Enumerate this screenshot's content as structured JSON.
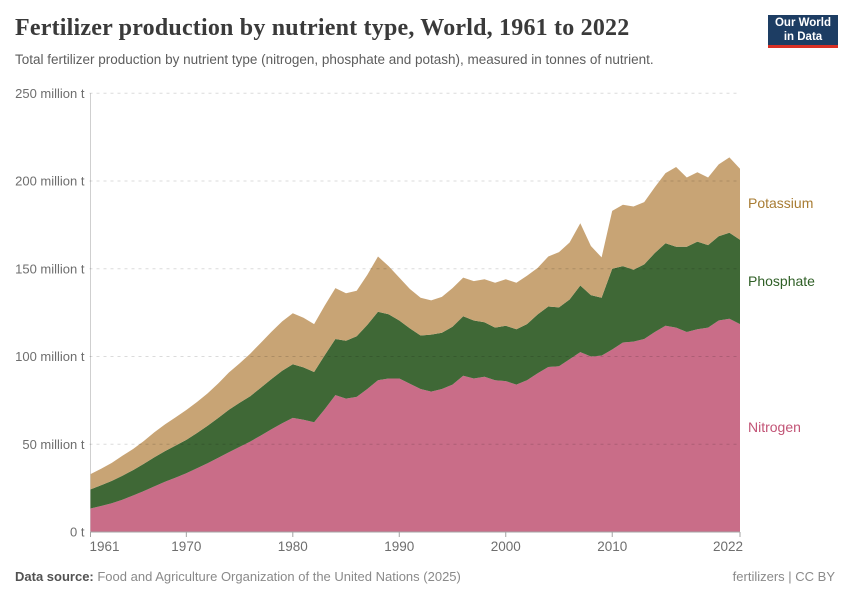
{
  "header": {
    "title": "Fertilizer production by nutrient type, World, 1961 to 2022",
    "subtitle": "Total fertilizer production by nutrient type (nitrogen, phosphate and potash), measured in tonnes of nutrient.",
    "logo": {
      "line1": "Our World",
      "line2": "in Data",
      "bg_color": "#1d3d63",
      "accent_color": "#d93025"
    }
  },
  "footer": {
    "datasource_label": "Data source:",
    "datasource_text": " Food and Agriculture Organization of the United Nations (2025)",
    "license": "fertilizers | CC BY"
  },
  "chart_data": {
    "type": "area",
    "stacked": true,
    "title": "Fertilizer production by nutrient type, World, 1961 to 2022",
    "xlabel": "",
    "ylabel": "million t",
    "xlim": [
      1961,
      2022
    ],
    "ylim": [
      0,
      250
    ],
    "grid": "dashed-horizontal",
    "legend_position": "right-edge-labels",
    "x_ticks": [
      1961,
      1970,
      1980,
      1990,
      2000,
      2010,
      2022
    ],
    "y_ticks": [
      {
        "value": 0,
        "label": "0 t"
      },
      {
        "value": 50,
        "label": "50 million t"
      },
      {
        "value": 100,
        "label": "100 million t"
      },
      {
        "value": 150,
        "label": "150 million t"
      },
      {
        "value": 200,
        "label": "200 million t"
      },
      {
        "value": 250,
        "label": "250 million t"
      }
    ],
    "x": [
      1961,
      1962,
      1963,
      1964,
      1965,
      1966,
      1967,
      1968,
      1969,
      1970,
      1971,
      1972,
      1973,
      1974,
      1975,
      1976,
      1977,
      1978,
      1979,
      1980,
      1981,
      1982,
      1983,
      1984,
      1985,
      1986,
      1987,
      1988,
      1989,
      1990,
      1991,
      1992,
      1993,
      1994,
      1995,
      1996,
      1997,
      1998,
      1999,
      2000,
      2001,
      2002,
      2003,
      2004,
      2005,
      2006,
      2007,
      2008,
      2009,
      2010,
      2011,
      2012,
      2013,
      2014,
      2015,
      2016,
      2017,
      2018,
      2019,
      2020,
      2021,
      2022
    ],
    "unit": "million tonnes",
    "series": [
      {
        "name": "Nitrogen",
        "color": "#c96d88",
        "label_color": "#c25476",
        "values": [
          13.4,
          14.8,
          16.4,
          18.4,
          20.8,
          23.3,
          26.0,
          28.6,
          31.0,
          33.5,
          36.3,
          39.2,
          42.3,
          45.5,
          48.5,
          51.5,
          55.0,
          58.5,
          62.0,
          65.0,
          64.0,
          62.5,
          70.0,
          78.0,
          76.0,
          77.0,
          81.5,
          86.5,
          87.5,
          87.5,
          84.5,
          81.5,
          80.0,
          81.5,
          84.0,
          89.0,
          87.5,
          88.5,
          86.5,
          86.0,
          84.0,
          86.5,
          90.5,
          94.0,
          94.5,
          98.5,
          102.5,
          100.0,
          100.5,
          104.0,
          108.0,
          108.5,
          110.0,
          114.0,
          117.5,
          116.5,
          114.0,
          115.5,
          116.5,
          120.5,
          121.5,
          118.5
        ]
      },
      {
        "name": "Phosphate",
        "color": "#3f6836",
        "label_color": "#2f5f26",
        "values": [
          10.9,
          11.8,
          12.7,
          13.7,
          14.5,
          15.5,
          16.6,
          17.5,
          18.3,
          19.0,
          20.1,
          21.3,
          22.7,
          24.2,
          25.1,
          25.9,
          27.3,
          28.7,
          29.9,
          30.6,
          29.8,
          28.7,
          30.7,
          32.0,
          33.0,
          34.5,
          36.5,
          39.0,
          36.6,
          33.0,
          31.5,
          30.5,
          32.5,
          32.0,
          33.0,
          34.0,
          33.0,
          31.0,
          30.0,
          31.5,
          31.5,
          32.0,
          33.5,
          34.5,
          33.5,
          34.0,
          38.0,
          35.0,
          33.0,
          46.0,
          43.5,
          41.0,
          42.5,
          45.0,
          47.0,
          46.0,
          48.5,
          50.0,
          47.0,
          48.0,
          49.0,
          48.0
        ]
      },
      {
        "name": "Potassium",
        "color": "#c8a475",
        "label_color": "#a87c33",
        "values": [
          8.7,
          9.4,
          10.3,
          11.3,
          12.0,
          13.0,
          14.2,
          15.2,
          16.1,
          17.0,
          17.7,
          18.5,
          19.7,
          21.2,
          22.5,
          24.2,
          25.6,
          26.9,
          28.1,
          29.1,
          28.3,
          27.3,
          28.3,
          29.0,
          27.0,
          26.0,
          28.5,
          31.5,
          27.4,
          24.5,
          22.5,
          21.5,
          19.5,
          20.5,
          22.0,
          22.0,
          22.5,
          24.5,
          25.5,
          26.5,
          26.5,
          27.5,
          26.5,
          28.5,
          31.5,
          32.5,
          35.5,
          28.0,
          23.0,
          33.0,
          35.0,
          36.0,
          35.5,
          37.5,
          40.0,
          45.5,
          39.5,
          39.5,
          38.5,
          41.0,
          43.0,
          40.5
        ]
      }
    ]
  }
}
